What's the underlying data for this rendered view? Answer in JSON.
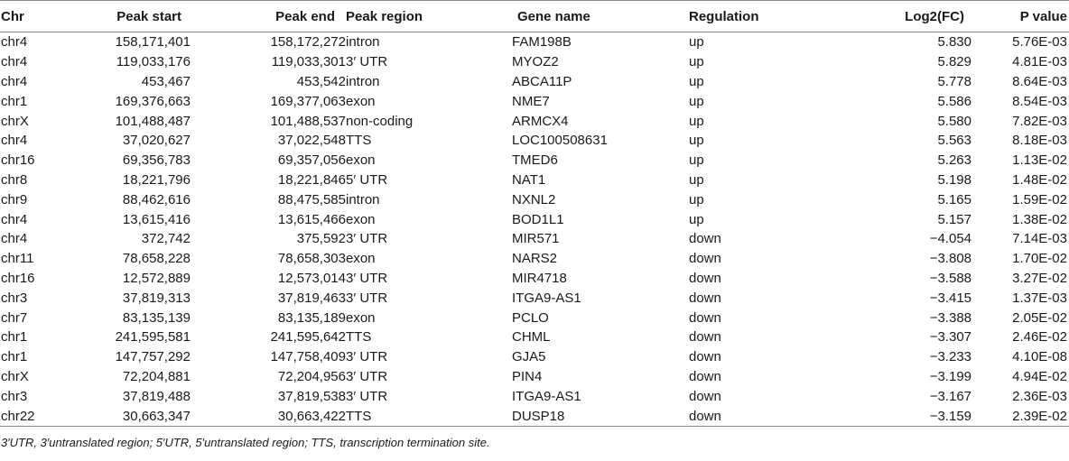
{
  "table": {
    "headers": [
      "Chr",
      "Peak start",
      "Peak end",
      "Peak region",
      "Gene name",
      "Regulation",
      "Log2(FC)",
      "P value"
    ],
    "rows": [
      [
        "chr4",
        "158,171,401",
        "158,172,272",
        "intron",
        "FAM198B",
        "up",
        "5.830",
        "5.76E-03"
      ],
      [
        "chr4",
        "119,033,176",
        "119,033,301",
        "3′ UTR",
        "MYOZ2",
        "up",
        "5.829",
        "4.81E-03"
      ],
      [
        "chr4",
        "453,467",
        "453,542",
        "intron",
        "ABCA11P",
        "up",
        "5.778",
        "8.64E-03"
      ],
      [
        "chr1",
        "169,376,663",
        "169,377,063",
        "exon",
        "NME7",
        "up",
        "5.586",
        "8.54E-03"
      ],
      [
        "chrX",
        "101,488,487",
        "101,488,537",
        "non-coding",
        "ARMCX4",
        "up",
        "5.580",
        "7.82E-03"
      ],
      [
        "chr4",
        "37,020,627",
        "37,022,548",
        "TTS",
        "LOC100508631",
        "up",
        "5.563",
        "8.18E-03"
      ],
      [
        "chr16",
        "69,356,783",
        "69,357,056",
        "exon",
        "TMED6",
        "up",
        "5.263",
        "1.13E-02"
      ],
      [
        "chr8",
        "18,221,796",
        "18,221,846",
        "5′ UTR",
        "NAT1",
        "up",
        "5.198",
        "1.48E-02"
      ],
      [
        "chr9",
        "88,462,616",
        "88,475,585",
        "intron",
        "NXNL2",
        "up",
        "5.165",
        "1.59E-02"
      ],
      [
        "chr4",
        "13,615,416",
        "13,615,466",
        "exon",
        "BOD1L1",
        "up",
        "5.157",
        "1.38E-02"
      ],
      [
        "chr4",
        "372,742",
        "375,592",
        "3′ UTR",
        "MIR571",
        "down",
        "−4.054",
        "7.14E-03"
      ],
      [
        "chr11",
        "78,658,228",
        "78,658,303",
        "exon",
        "NARS2",
        "down",
        "−3.808",
        "1.70E-02"
      ],
      [
        "chr16",
        "12,572,889",
        "12,573,014",
        "3′ UTR",
        "MIR4718",
        "down",
        "−3.588",
        "3.27E-02"
      ],
      [
        "chr3",
        "37,819,313",
        "37,819,463",
        "3′ UTR",
        "ITGA9-AS1",
        "down",
        "−3.415",
        "1.37E-03"
      ],
      [
        "chr7",
        "83,135,139",
        "83,135,189",
        "exon",
        "PCLO",
        "down",
        "−3.388",
        "2.05E-02"
      ],
      [
        "chr1",
        "241,595,581",
        "241,595,642",
        "TTS",
        "CHML",
        "down",
        "−3.307",
        "2.46E-02"
      ],
      [
        "chr1",
        "147,757,292",
        "147,758,409",
        "3′ UTR",
        "GJA5",
        "down",
        "−3.233",
        "4.10E-08"
      ],
      [
        "chrX",
        "72,204,881",
        "72,204,956",
        "3′ UTR",
        "PIN4",
        "down",
        "−3.199",
        "4.94E-02"
      ],
      [
        "chr3",
        "37,819,488",
        "37,819,538",
        "3′ UTR",
        "ITGA9-AS1",
        "down",
        "−3.167",
        "2.36E-03"
      ],
      [
        "chr22",
        "30,663,347",
        "30,663,422",
        "TTS",
        "DUSP18",
        "down",
        "−3.159",
        "2.39E-02"
      ]
    ]
  },
  "footnote": "3′UTR, 3′untranslated region; 5′UTR, 5′untranslated region; TTS, transcription termination site."
}
